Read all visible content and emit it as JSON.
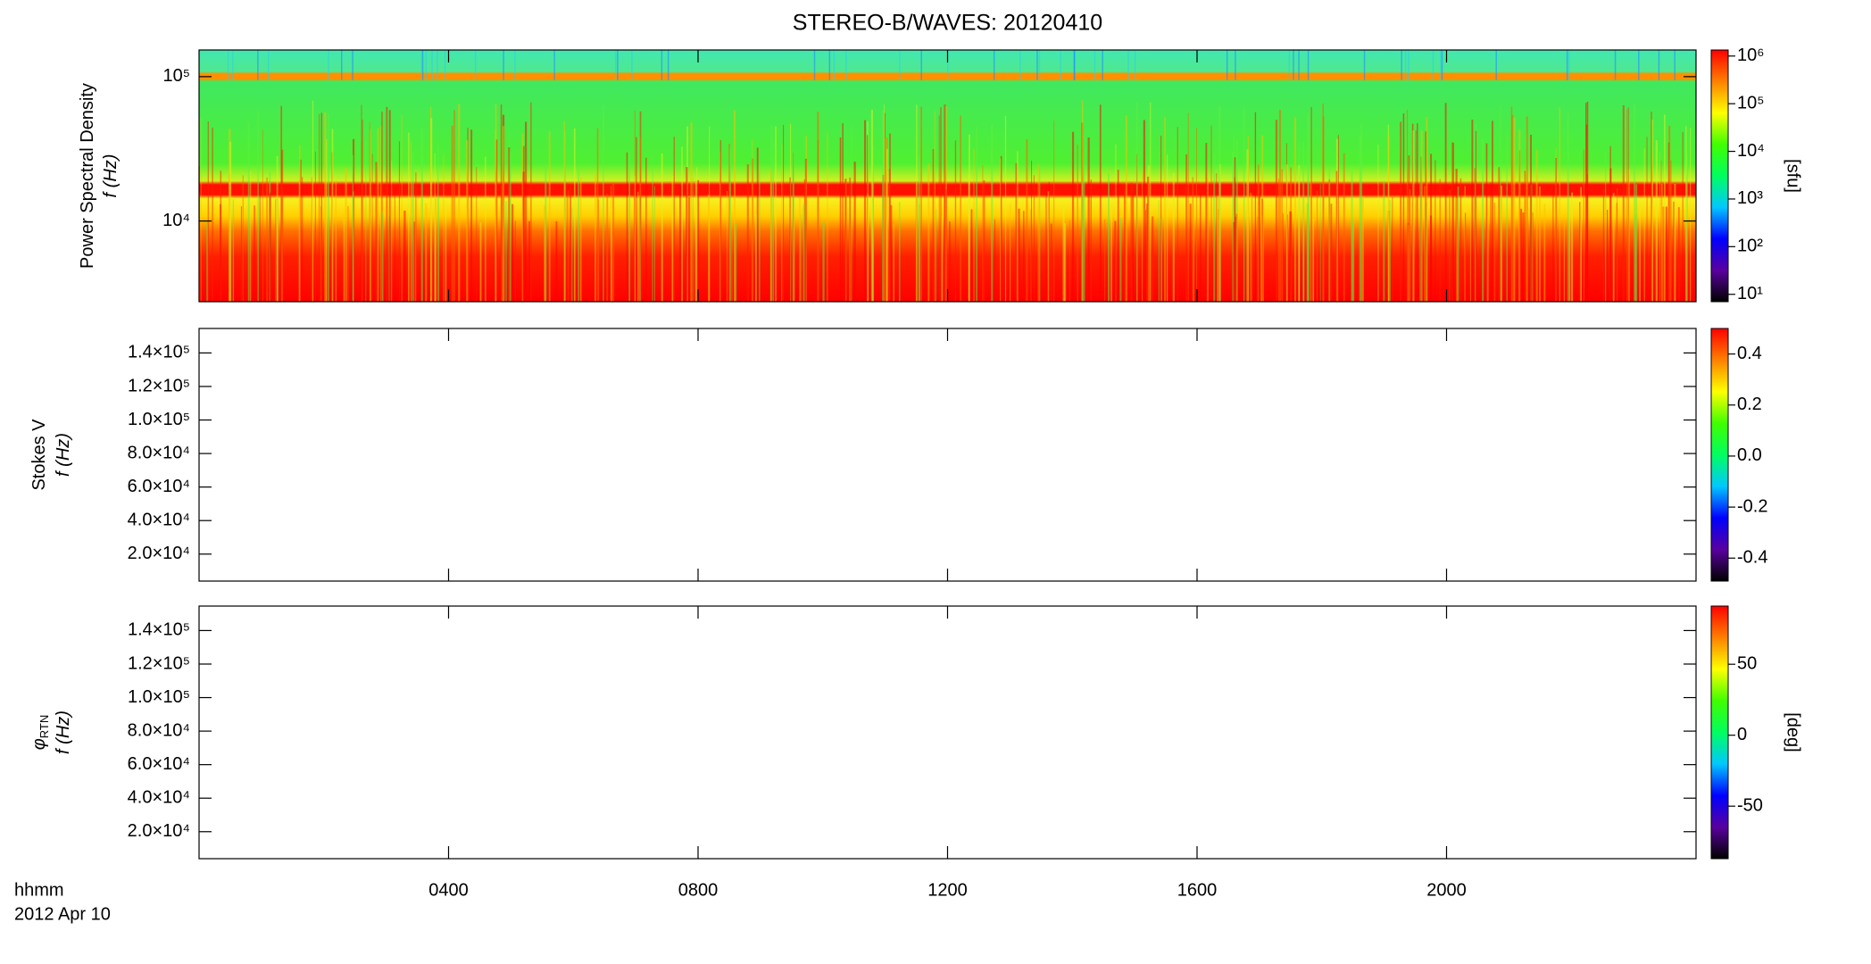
{
  "chart_data": [
    {
      "type": "spectrogram",
      "title": "STEREO-B/WAVES: 20120410",
      "ylabel": [
        "Power Spectral Density",
        "f (Hz)"
      ],
      "yscale": "log",
      "ylim": [
        2760,
        153000
      ],
      "yticks": [
        {
          "value": 10000,
          "label": "10⁴"
        },
        {
          "value": 100000,
          "label": "10⁵"
        }
      ],
      "colorbar": {
        "scale": "log",
        "clim": [
          7,
          1340000
        ],
        "label": "[sfu]",
        "ticks": [
          {
            "value": 10,
            "label": "10¹"
          },
          {
            "value": 100,
            "label": "10²"
          },
          {
            "value": 1000,
            "label": "10³"
          },
          {
            "value": 10000,
            "label": "10⁴"
          },
          {
            "value": 100000,
            "label": "10⁵"
          },
          {
            "value": 1000000,
            "label": "10⁶"
          }
        ]
      },
      "colormap": [
        "#000000",
        "#5a00a0",
        "#0000ff",
        "#00c8ff",
        "#00ff60",
        "#40ff00",
        "#ffff00",
        "#ff8000",
        "#ff0000"
      ]
    },
    {
      "type": "spectrogram",
      "ylabel": [
        "Stokes V",
        "f (Hz)"
      ],
      "yscale": "linear",
      "ylim": [
        3900,
        154600
      ],
      "yticks": [
        {
          "value": 20000,
          "label": "2.0×10⁴"
        },
        {
          "value": 40000,
          "label": "4.0×10⁴"
        },
        {
          "value": 60000,
          "label": "6.0×10⁴"
        },
        {
          "value": 80000,
          "label": "8.0×10⁴"
        },
        {
          "value": 100000,
          "label": "1.0×10⁵"
        },
        {
          "value": 120000,
          "label": "1.2×10⁵"
        },
        {
          "value": 140000,
          "label": "1.4×10⁵"
        }
      ],
      "colorbar": {
        "scale": "linear",
        "clim": [
          -0.49,
          0.5
        ],
        "ticks": [
          -0.4,
          -0.2,
          {
            "value": 0,
            "label": "0.0"
          },
          0.2,
          0.4
        ]
      },
      "colormap": [
        "#000000",
        "#5a00a0",
        "#0000ff",
        "#00c8ff",
        "#00ff60",
        "#40ff00",
        "#ffff00",
        "#ff8000",
        "#ff0000"
      ]
    },
    {
      "type": "spectrogram",
      "ylabel": [
        "φ",
        "f (Hz)"
      ],
      "ylabel_sub": "RTN",
      "yscale": "linear",
      "ylim": [
        3900,
        154600
      ],
      "yticks": [
        {
          "value": 20000,
          "label": "2.0×10⁴"
        },
        {
          "value": 40000,
          "label": "4.0×10⁴"
        },
        {
          "value": 60000,
          "label": "6.0×10⁴"
        },
        {
          "value": 80000,
          "label": "8.0×10⁴"
        },
        {
          "value": 100000,
          "label": "1.0×10⁵"
        },
        {
          "value": 120000,
          "label": "1.2×10⁵"
        },
        {
          "value": 140000,
          "label": "1.4×10⁵"
        }
      ],
      "colorbar": {
        "scale": "linear",
        "clim": [
          -87,
          91
        ],
        "label": "[deg]",
        "ticks": [
          -50,
          0,
          50
        ]
      },
      "colormap": [
        "#000000",
        "#5a00a0",
        "#0000ff",
        "#00c8ff",
        "#00ff60",
        "#40ff00",
        "#ffff00",
        "#ff8000",
        "#ff0000"
      ],
      "xlim": [
        0,
        24
      ],
      "xticks": [
        {
          "value": 4,
          "label": "0400"
        },
        {
          "value": 8,
          "label": "0800"
        },
        {
          "value": 12,
          "label": "1200"
        },
        {
          "value": 16,
          "label": "1600"
        },
        {
          "value": 20,
          "label": "2000"
        }
      ],
      "xlabel": [
        "hhmm",
        "2012 Apr 10"
      ]
    }
  ]
}
